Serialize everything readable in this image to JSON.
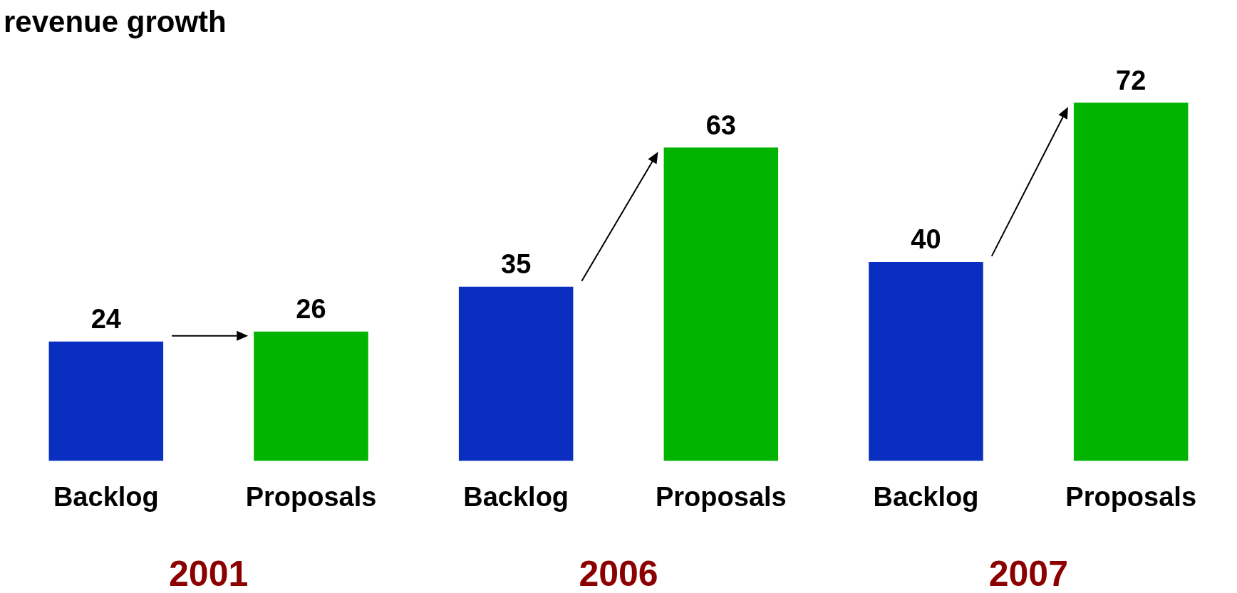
{
  "chart_data": {
    "type": "bar",
    "title": "revenue growth",
    "categories": [
      "Backlog",
      "Proposals",
      "Backlog",
      "Proposals",
      "Backlog",
      "Proposals"
    ],
    "values": [
      24,
      26,
      35,
      63,
      40,
      72
    ],
    "colors": [
      "#0a2fc0",
      "#00b400",
      "#0a2fc0",
      "#00b400",
      "#0a2fc0",
      "#00b400"
    ],
    "data_labels": true,
    "annotations": [
      "2001",
      "2006",
      "2007"
    ],
    "tick_labels": "x",
    "grid": false,
    "legend": false
  }
}
